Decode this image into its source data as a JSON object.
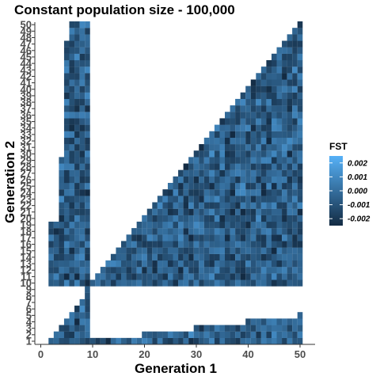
{
  "chart_data": {
    "type": "heatmap",
    "title": "Constant population size - 100,000",
    "xlabel": "Generation 1",
    "ylabel": "Generation 2",
    "xlim": [
      0,
      52
    ],
    "ylim": [
      1,
      50
    ],
    "x_ticks": [
      "0",
      "10",
      "20",
      "30",
      "40",
      "50"
    ],
    "x_tick_values": [
      0,
      10,
      20,
      30,
      40,
      50
    ],
    "y_ticks": [
      "1",
      "2",
      "3",
      "4",
      "5",
      "6",
      "7",
      "8",
      "9",
      "10",
      "11",
      "12",
      "13",
      "14",
      "15",
      "16",
      "17",
      "18",
      "19",
      "20",
      "21",
      "22",
      "23",
      "24",
      "25",
      "26",
      "27",
      "28",
      "29",
      "30",
      "31",
      "32",
      "33",
      "34",
      "35",
      "36",
      "37",
      "38",
      "39",
      "40",
      "41",
      "42",
      "43",
      "44",
      "45",
      "46",
      "47",
      "48",
      "49",
      "50"
    ],
    "legend": {
      "title": "FST",
      "labels": [
        "0.002",
        "0.001",
        "0.000",
        "-0.001",
        "-0.002"
      ],
      "values": [
        0.002,
        0.001,
        0.0,
        -0.001,
        -0.002
      ],
      "range": [
        -0.0025,
        0.0025
      ],
      "color_low": "#132b43",
      "color_high": "#56b1f7",
      "placement": "right"
    },
    "grid": false,
    "color_range": [
      -0.0025,
      0.0025
    ],
    "value_seed": 7,
    "value_note_omitted": true,
    "regions": [
      {
        "name": "upper-triangle",
        "x_from": 10,
        "x_to": 50,
        "y_from": 10,
        "y_to": 50,
        "rule": "y<=x"
      },
      {
        "name": "left-strip-band",
        "x_from": 2,
        "x_to": 9,
        "y_from": 10,
        "y_to": 50
      },
      {
        "name": "bottom-band",
        "x_from": 2,
        "x_to": 50,
        "y_from": 1,
        "y_to": 9
      }
    ]
  }
}
